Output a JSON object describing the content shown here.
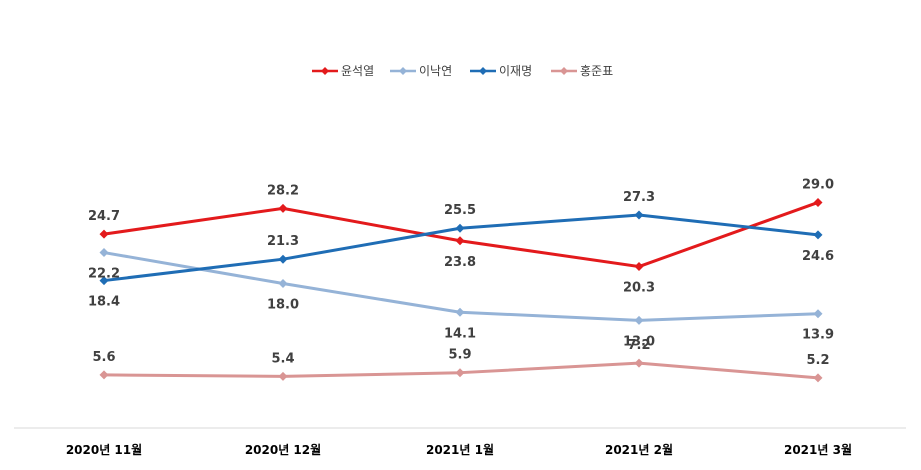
{
  "chart_data": {
    "type": "line",
    "categories": [
      "2020년 11월",
      "2020년 12월",
      "2021년 1월",
      "2021년 2월",
      "2021년 3월"
    ],
    "series": [
      {
        "name": "윤석열",
        "values": [
          24.7,
          28.2,
          23.8,
          20.3,
          29.0
        ],
        "color": "#e31a1c"
      },
      {
        "name": "이낙연",
        "values": [
          22.2,
          18.0,
          14.1,
          13.0,
          13.9
        ],
        "color": "#95b3d7"
      },
      {
        "name": "이재명",
        "values": [
          18.4,
          21.3,
          25.5,
          27.3,
          24.6
        ],
        "color": "#1f6db5"
      },
      {
        "name": "홍준표",
        "values": [
          5.6,
          5.4,
          5.9,
          7.2,
          5.2
        ],
        "color": "#d99594"
      }
    ],
    "legend_position": "top-center",
    "grid": false
  }
}
